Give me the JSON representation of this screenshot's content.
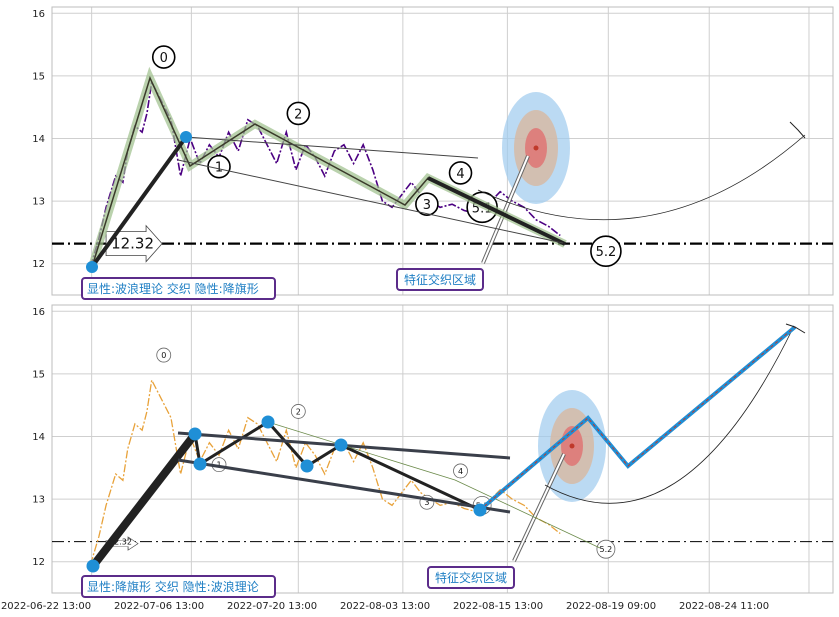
{
  "chart_data": [
    {
      "type": "line",
      "panel": "top",
      "ylim": [
        11.5,
        16.1
      ],
      "yticks": [
        "12",
        "13",
        "14",
        "15",
        "16"
      ],
      "grid": true,
      "price_series": {
        "style": "purple dash-dot",
        "color": "#4b0082",
        "x": [
          0.9,
          1.6,
          2.2,
          3.0,
          3.6,
          4.0,
          4.6,
          5.2,
          5.6,
          6.0,
          6.8,
          7.6,
          8.4,
          9.2,
          10.0,
          10.8,
          11.6,
          12.4,
          13.2,
          14.0,
          14.8,
          15.6,
          16.4,
          17.2,
          18.0,
          18.8,
          19.6,
          20.4,
          21.2,
          22.0,
          22.8,
          23.6,
          24.4,
          25.2,
          26.0,
          26.8,
          27.6,
          28.4,
          29.2,
          30.0,
          31.0,
          32.0,
          33.0,
          34.0,
          35.0,
          36.0,
          37.0,
          38.0,
          39.0,
          40.0
        ],
        "values": [
          11.95,
          12.4,
          12.9,
          13.4,
          13.3,
          13.8,
          14.2,
          14.1,
          14.4,
          14.9,
          14.6,
          14.3,
          13.4,
          14.0,
          13.6,
          13.9,
          13.7,
          14.1,
          13.8,
          14.3,
          14.2,
          13.9,
          13.6,
          14.1,
          13.5,
          13.9,
          13.7,
          13.4,
          13.8,
          13.9,
          13.6,
          13.9,
          13.5,
          13.0,
          12.9,
          13.1,
          13.3,
          13.1,
          13.0,
          12.9,
          12.95,
          12.85,
          12.8,
          12.95,
          13.15,
          13.0,
          12.9,
          12.7,
          12.6,
          12.45
        ]
      },
      "wave_x": [
        0.0,
        5.8,
        8.1,
        10.4,
        12.8,
        17.0,
        20.4,
        24.0,
        27.7,
        30.5,
        35.7
      ],
      "wave_y": [
        11.95,
        14.95,
        14.05,
        13.55,
        14.05,
        14.3,
        13.9,
        13.5,
        12.85,
        13.35,
        12.3
      ],
      "wave_labels": [
        "0",
        "1",
        "2",
        "3",
        "4",
        "5.1",
        "5.2"
      ],
      "wave_label_x": [
        5.8,
        10.4,
        17.0,
        27.7,
        30.5,
        32.3,
        42.6
      ],
      "wave_label_y": [
        15.3,
        13.55,
        14.4,
        12.95,
        13.45,
        12.9,
        12.2
      ],
      "h_level": 12.32,
      "h_label": "12.32",
      "callout": "特征交织区域",
      "status": "显性:波浪理论 交织 隐性:降旗形"
    },
    {
      "type": "line",
      "panel": "bottom",
      "ylim": [
        11.5,
        16.1
      ],
      "yticks": [
        "12",
        "13",
        "14",
        "15",
        "16"
      ],
      "grid": true,
      "price_series": {
        "style": "orange dash-dot",
        "color": "#e8a23a",
        "x": [
          0.9,
          1.6,
          2.2,
          3.0,
          3.6,
          4.0,
          4.6,
          5.2,
          5.6,
          6.0,
          6.8,
          7.6,
          8.4,
          9.2,
          10.0,
          10.8,
          11.6,
          12.4,
          13.2,
          14.0,
          14.8,
          15.6,
          16.4,
          17.2,
          18.0,
          18.8,
          19.6,
          20.4,
          21.2,
          22.0,
          22.8,
          23.6,
          24.4,
          25.2,
          26.0,
          26.8,
          27.6,
          28.4,
          29.2,
          30.0,
          31.0,
          32.0,
          33.0,
          34.0,
          35.0,
          36.0,
          37.0,
          38.0,
          39.0,
          40.0
        ],
        "values": [
          11.95,
          12.4,
          12.9,
          13.4,
          13.3,
          13.8,
          14.2,
          14.1,
          14.4,
          14.9,
          14.6,
          14.3,
          13.4,
          14.0,
          13.6,
          13.9,
          13.7,
          14.1,
          13.8,
          14.3,
          14.2,
          13.9,
          13.6,
          14.1,
          13.5,
          13.9,
          13.7,
          13.4,
          13.8,
          13.9,
          13.6,
          13.9,
          13.5,
          13.0,
          12.9,
          13.1,
          13.3,
          13.1,
          13.0,
          12.9,
          12.95,
          12.85,
          12.8,
          12.95,
          13.15,
          13.0,
          12.9,
          12.7,
          12.6,
          12.45
        ]
      },
      "wave_labels": [
        "0",
        "1",
        "2",
        "3",
        "4",
        "5.1",
        "5.2"
      ],
      "wave_label_x": [
        5.8,
        10.4,
        17.0,
        27.7,
        30.5,
        32.3,
        42.6
      ],
      "wave_label_y": [
        15.3,
        13.55,
        14.4,
        12.95,
        13.45,
        12.9,
        12.2
      ],
      "h_level": 12.32,
      "h_label": "12.32",
      "callout": "特征交织区域",
      "status": "显性:降旗形 交织 隐性:波浪理论"
    }
  ],
  "x_axis_labels": [
    "2022-06-22 13:00",
    "2022-07-06 13:00",
    "2022-07-20 13:00",
    "2022-08-03 13:00",
    "2022-08-15 13:00",
    "2022-08-19 09:00",
    "2022-08-24 11:00"
  ],
  "colors": {
    "accent_blue": "#1f8fd6",
    "purple_box": "#5b2c8a",
    "text_blue": "#1f7fc4",
    "grid": "#cfcfcf"
  }
}
